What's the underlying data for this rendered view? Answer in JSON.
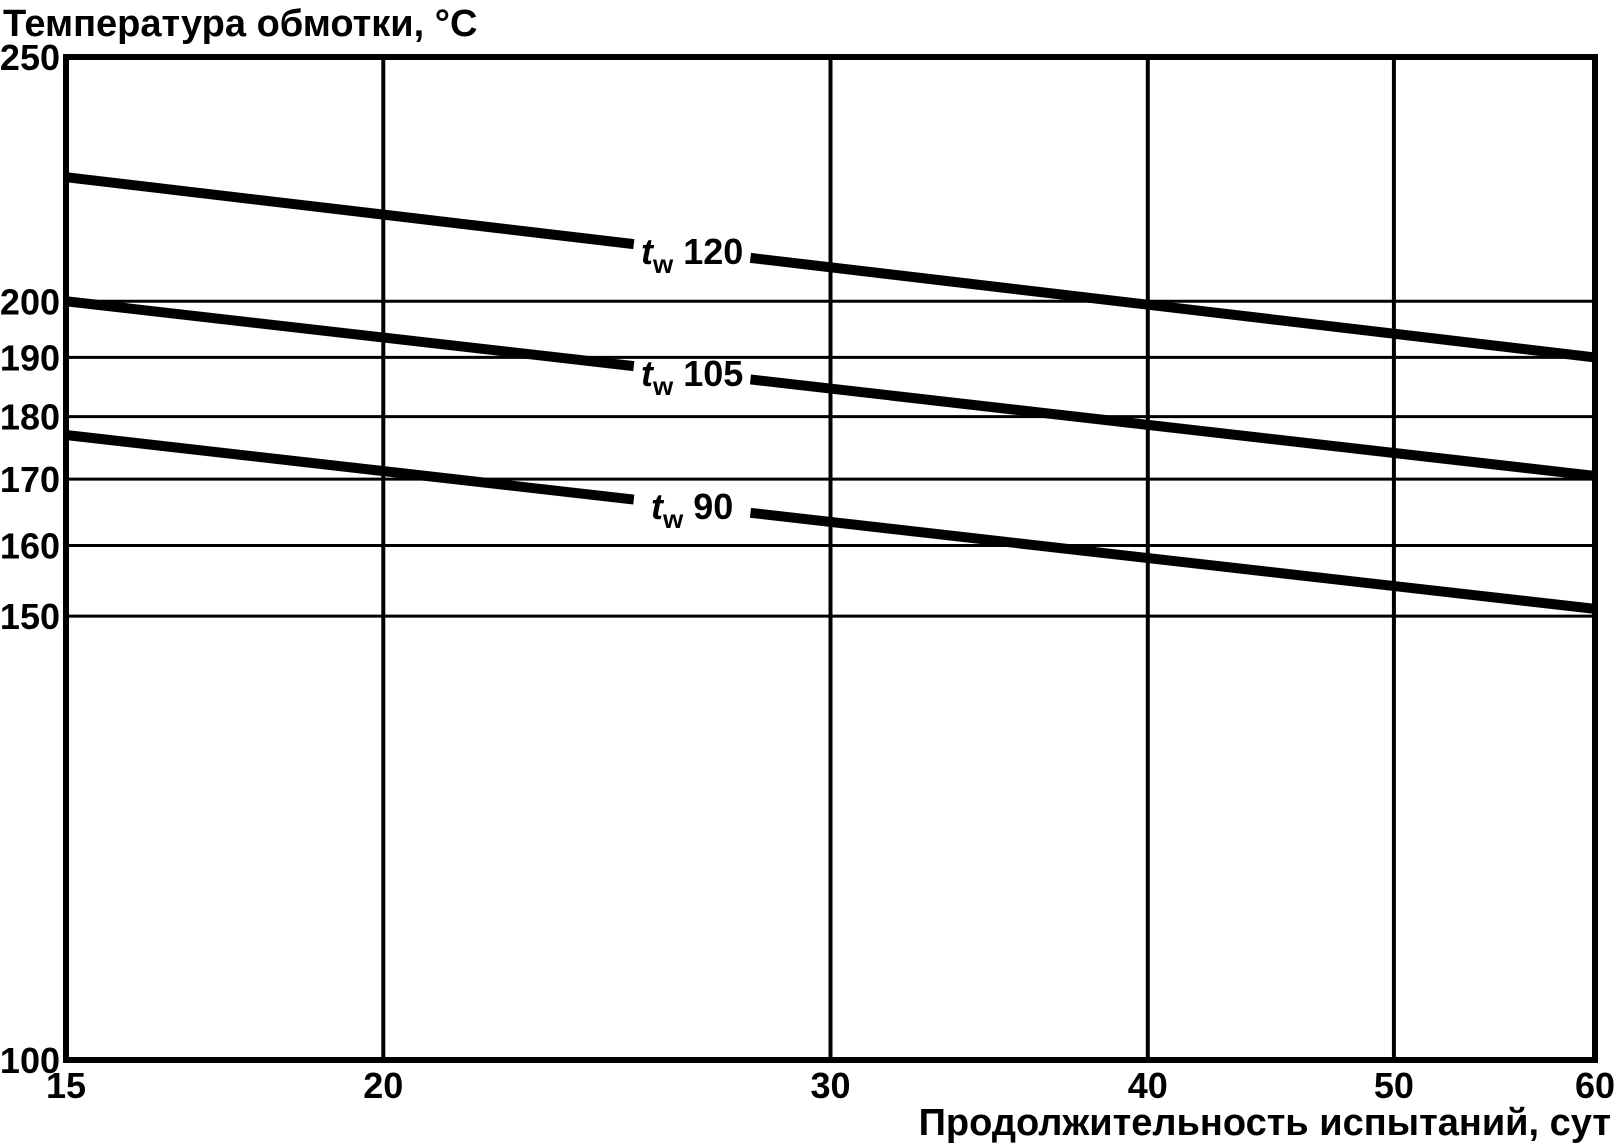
{
  "page": {
    "background": "#ffffff",
    "ink": "#000000"
  },
  "chart_data": {
    "type": "line",
    "y_axis_title": "Температура обмотки, °С",
    "x_axis_title": "Продолжительность испытаний, сут",
    "x_scale": "log",
    "y_scale": "log",
    "xlim": [
      15,
      60
    ],
    "ylim": [
      100,
      250
    ],
    "x_ticks": [
      "15",
      "20",
      "30",
      "40",
      "50",
      "60"
    ],
    "x_tick_values": [
      15,
      20,
      30,
      40,
      50,
      60
    ],
    "y_ticks": [
      "100",
      "150",
      "160",
      "170",
      "180",
      "190",
      "200",
      "250"
    ],
    "y_tick_values": [
      100,
      150,
      160,
      170,
      180,
      190,
      200,
      250
    ],
    "x_gridlines": [
      20,
      30,
      40,
      50
    ],
    "y_gridlines": [
      150,
      160,
      170,
      180,
      190,
      200
    ],
    "grid_on": true,
    "legend": "inline-labels-on-lines",
    "series": [
      {
        "name": "tw-120",
        "label_var": "t",
        "label_sub": "w",
        "label_value": "120",
        "x": [
          15,
          60
        ],
        "y": [
          224,
          190
        ]
      },
      {
        "name": "tw-105",
        "label_var": "t",
        "label_sub": "w",
        "label_value": "105",
        "x": [
          15,
          60
        ],
        "y": [
          200,
          170.5
        ]
      },
      {
        "name": "tw-90",
        "label_var": "t",
        "label_sub": "w",
        "label_value": "90",
        "x": [
          15,
          60
        ],
        "y": [
          177,
          151
        ]
      }
    ],
    "series_label_gap_x": [
      25.1,
      27.9
    ]
  }
}
